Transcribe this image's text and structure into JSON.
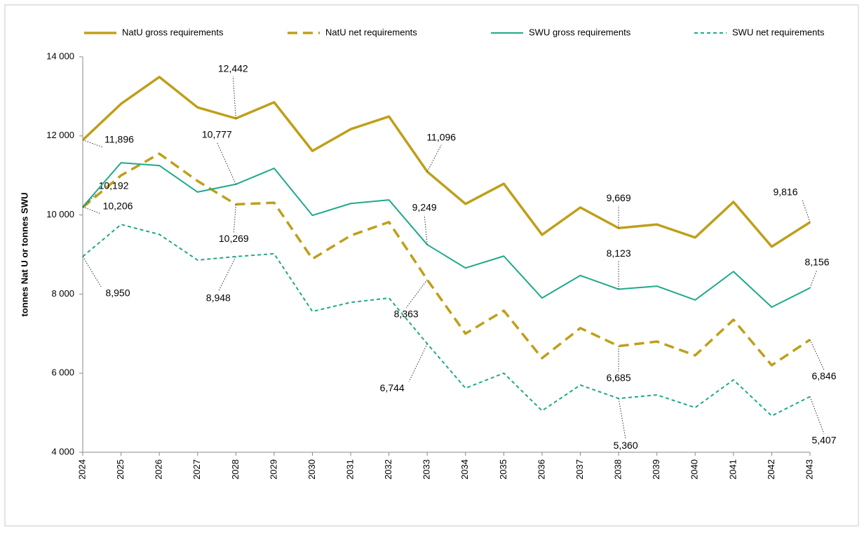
{
  "chart_data": {
    "type": "line",
    "y_label": "tonnes Nat U or tonnes SWU",
    "categories": [
      "2024",
      "2025",
      "2026",
      "2027",
      "2028",
      "2029",
      "2030",
      "2031",
      "2032",
      "2033",
      "2034",
      "2035",
      "2036",
      "2037",
      "2038",
      "2039",
      "2040",
      "2041",
      "2042",
      "2043"
    ],
    "ylim": [
      4000,
      14000
    ],
    "yticks": [
      {
        "value": 4000,
        "label": "4 000"
      },
      {
        "value": 6000,
        "label": "6 000"
      },
      {
        "value": 8000,
        "label": "8 000"
      },
      {
        "value": 10000,
        "label": "10 000"
      },
      {
        "value": 12000,
        "label": "12 000"
      },
      {
        "value": 14000,
        "label": "14 000"
      }
    ],
    "grid": false,
    "legend": "top",
    "series": [
      {
        "name": "NatU gross requirements",
        "color": "#bf9f1a",
        "dash": "solid",
        "width": 3.5,
        "values": [
          11896,
          12810,
          13490,
          12720,
          12442,
          12850,
          11620,
          12170,
          12490,
          11096,
          10280,
          10790,
          9500,
          10190,
          9669,
          9760,
          9430,
          10330,
          9200,
          9816
        ],
        "value_labels": [
          "11,896",
          null,
          null,
          null,
          "12,442",
          null,
          null,
          null,
          null,
          "11,096",
          null,
          null,
          null,
          null,
          "9,669",
          null,
          null,
          null,
          null,
          "9,816"
        ]
      },
      {
        "name": "NatU net requirements",
        "color": "#bf9f1a",
        "dash": "dashed",
        "width": 3.5,
        "values": [
          10192,
          11000,
          11550,
          10860,
          10269,
          10310,
          8890,
          9480,
          9820,
          8363,
          7000,
          7580,
          6380,
          7140,
          6685,
          6800,
          6450,
          7350,
          6200,
          6846
        ],
        "value_labels": [
          "10,192",
          null,
          null,
          null,
          "10,269",
          null,
          null,
          null,
          null,
          "8,363",
          null,
          null,
          null,
          null,
          "6,685",
          null,
          null,
          null,
          null,
          "6,846"
        ]
      },
      {
        "name": "SWU gross requirements",
        "color": "#1fa98a",
        "dash": "solid",
        "width": 2,
        "values": [
          10206,
          11320,
          11250,
          10580,
          10777,
          11180,
          9990,
          10290,
          10380,
          9249,
          8660,
          8960,
          7900,
          8470,
          8123,
          8200,
          7850,
          8570,
          7670,
          8156
        ],
        "value_labels": [
          "10,206",
          null,
          null,
          null,
          "10,777",
          null,
          null,
          null,
          null,
          "9,249",
          null,
          null,
          null,
          null,
          "8,123",
          null,
          null,
          null,
          null,
          "8,156"
        ]
      },
      {
        "name": "SWU net requirements",
        "color": "#1fa98a",
        "dash": "dashed",
        "width": 2,
        "values": [
          8950,
          9760,
          9510,
          8860,
          8948,
          9020,
          7560,
          7790,
          7900,
          6744,
          5620,
          6000,
          5050,
          5700,
          5360,
          5450,
          5130,
          5830,
          4920,
          5407
        ],
        "value_labels": [
          "8,950",
          null,
          null,
          null,
          "8,948",
          null,
          null,
          null,
          null,
          "6,744",
          null,
          null,
          null,
          null,
          "5,360",
          null,
          null,
          null,
          null,
          "5,407"
        ]
      }
    ]
  }
}
